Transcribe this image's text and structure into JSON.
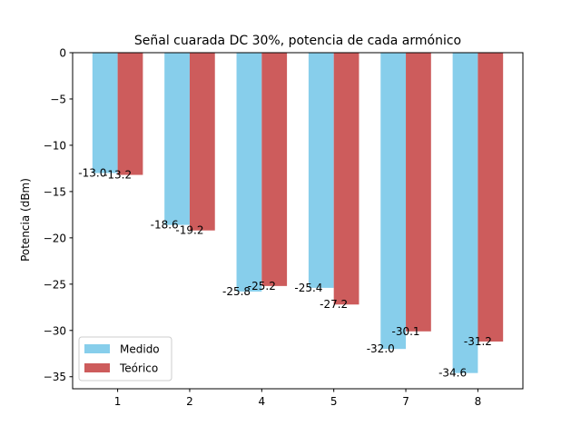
{
  "chart_data": {
    "type": "bar",
    "title": "Señal cuarada DC 30%, potencia de cada armónico",
    "xlabel": "",
    "ylabel": "Potencia (dBm)",
    "categories": [
      "1",
      "2",
      "4",
      "5",
      "7",
      "8"
    ],
    "series": [
      {
        "name": "Medido",
        "color": "#87ceeb",
        "values": [
          -13.0,
          -18.6,
          -25.8,
          -25.4,
          -32.0,
          -34.6
        ],
        "labels": [
          "-13.0",
          "-18.6",
          "-25.8",
          "-25.4",
          "-32.0",
          "-34.6"
        ]
      },
      {
        "name": "Teórico",
        "color": "#cd5c5c",
        "values": [
          -13.2,
          -19.2,
          -25.2,
          -27.2,
          -30.1,
          -31.2
        ],
        "labels": [
          "-13.2",
          "-19.2",
          "-25.2",
          "-27.2",
          "-30.1",
          "-31.2"
        ]
      }
    ],
    "ylim": [
      -36.3,
      0
    ],
    "yticks": [
      0,
      -5,
      -10,
      -15,
      -20,
      -25,
      -30,
      -35
    ],
    "ytick_labels": [
      "0",
      "−5",
      "−10",
      "−15",
      "−20",
      "−25",
      "−30",
      "−35"
    ],
    "grid": false,
    "legend_position": "lower-left"
  }
}
